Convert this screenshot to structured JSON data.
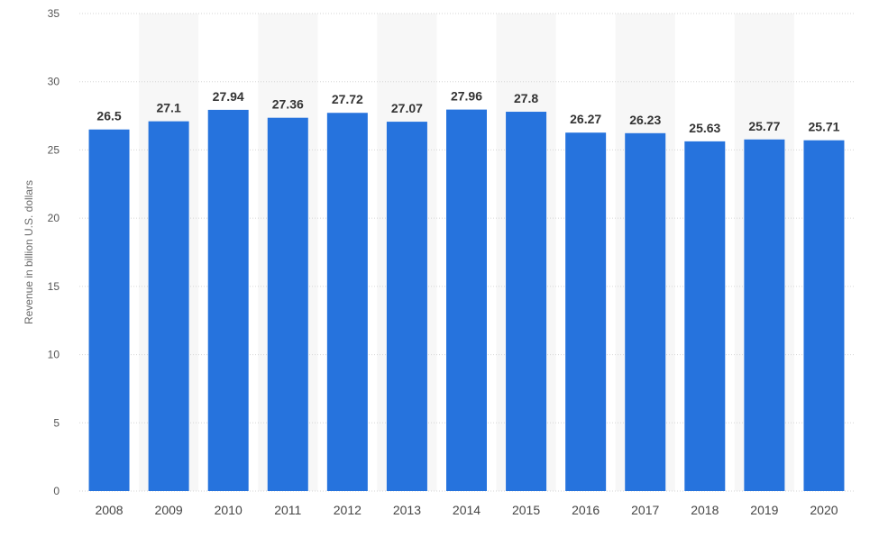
{
  "chart_data": {
    "type": "bar",
    "title": "",
    "xlabel": "",
    "ylabel": "Revenue in billion U.S. dollars",
    "categories": [
      "2008",
      "2009",
      "2010",
      "2011",
      "2012",
      "2013",
      "2014",
      "2015",
      "2016",
      "2017",
      "2018",
      "2019",
      "2020"
    ],
    "values": [
      26.5,
      27.1,
      27.94,
      27.36,
      27.72,
      27.07,
      27.96,
      27.8,
      26.27,
      26.23,
      25.63,
      25.77,
      25.71
    ],
    "value_labels": [
      "26.5",
      "27.1",
      "27.94",
      "27.36",
      "27.72",
      "27.07",
      "27.96",
      "27.8",
      "26.27",
      "26.23",
      "25.63",
      "25.77",
      "25.71"
    ],
    "ylim": [
      0,
      35
    ],
    "yticks": [
      0,
      5,
      10,
      15,
      20,
      25,
      30,
      35
    ],
    "grid": true,
    "legend": "none",
    "colors": {
      "bar": "#2673DD",
      "grid": "#D6D6D6",
      "band": "#F7F7F7"
    }
  }
}
